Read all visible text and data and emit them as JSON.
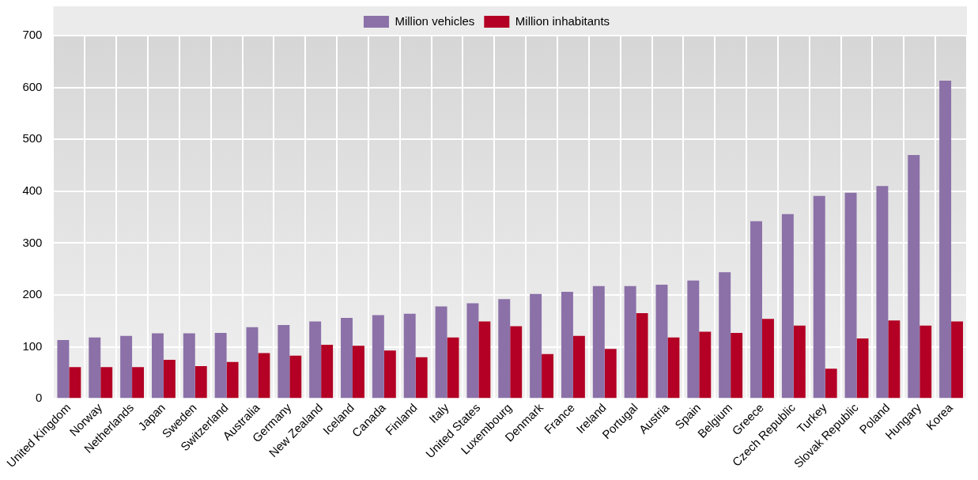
{
  "chart_data": {
    "type": "bar",
    "categories": [
      "United Kingdom",
      "Norway",
      "Netherlands",
      "Japan",
      "Sweden",
      "Switzerland",
      "Australia",
      "Germany",
      "New Zealand",
      "Iceland",
      "Canada",
      "Finland",
      "Italy",
      "United States",
      "Luxembourg",
      "Denmark",
      "France",
      "Ireland",
      "Portugal",
      "Austria",
      "Spain",
      "Belgium",
      "Greece",
      "Czech Republic",
      "Turkey",
      "Slovak Republic",
      "Poland",
      "Hungary",
      "Korea"
    ],
    "series": [
      {
        "name": "Million vehicles",
        "color": "#8b71a8",
        "values": [
          113,
          118,
          121,
          126,
          126,
          127,
          138,
          142,
          149,
          156,
          161,
          164,
          178,
          184,
          192,
          202,
          206,
          217,
          217,
          220,
          228,
          244,
          342,
          356,
          391,
          397,
          410,
          470,
          613
        ]
      },
      {
        "name": "Million inhabitants",
        "color": "#b30024",
        "values": [
          61,
          61,
          61,
          75,
          63,
          71,
          88,
          83,
          104,
          102,
          93,
          80,
          118,
          149,
          140,
          86,
          121,
          96,
          165,
          118,
          129,
          127,
          154,
          141,
          58,
          116,
          151,
          141,
          149
        ]
      }
    ],
    "ylim": [
      0,
      700
    ],
    "yticks": [
      0,
      100,
      200,
      300,
      400,
      500,
      600,
      700
    ],
    "grid": true,
    "legend": "top"
  }
}
